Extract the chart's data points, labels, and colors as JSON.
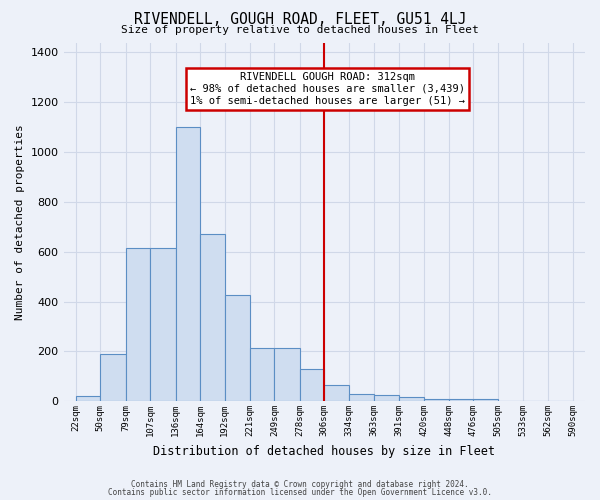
{
  "title": "RIVENDELL, GOUGH ROAD, FLEET, GU51 4LJ",
  "subtitle": "Size of property relative to detached houses in Fleet",
  "xlabel": "Distribution of detached houses by size in Fleet",
  "ylabel": "Number of detached properties",
  "bar_color": "#cfddf0",
  "bar_edge_color": "#5b8ec4",
  "bg_color": "#edf1f9",
  "grid_color": "#d0d8e8",
  "red_line_x": 306,
  "annotation_text": "RIVENDELL GOUGH ROAD: 312sqm\n← 98% of detached houses are smaller (3,439)\n1% of semi-detached houses are larger (51) →",
  "bin_left_edges": [
    22,
    50,
    79,
    107,
    136,
    164,
    192,
    221,
    249,
    278,
    306,
    334,
    363,
    391,
    420,
    448,
    476,
    505,
    533,
    562
  ],
  "bin_widths": [
    28,
    29,
    28,
    29,
    28,
    28,
    29,
    28,
    29,
    28,
    28,
    29,
    28,
    29,
    28,
    28,
    29,
    28,
    29,
    28
  ],
  "bar_heights": [
    20,
    190,
    615,
    615,
    1100,
    670,
    425,
    215,
    215,
    130,
    65,
    30,
    25,
    15,
    10,
    10,
    10,
    0,
    0,
    0
  ],
  "tick_labels": [
    "22sqm",
    "50sqm",
    "79sqm",
    "107sqm",
    "136sqm",
    "164sqm",
    "192sqm",
    "221sqm",
    "249sqm",
    "278sqm",
    "306sqm",
    "334sqm",
    "363sqm",
    "391sqm",
    "420sqm",
    "448sqm",
    "476sqm",
    "505sqm",
    "533sqm",
    "562sqm",
    "590sqm"
  ],
  "ylim": [
    0,
    1440
  ],
  "xlim_left": 8,
  "xlim_right": 605,
  "footer1": "Contains HM Land Registry data © Crown copyright and database right 2024.",
  "footer2": "Contains public sector information licensed under the Open Government Licence v3.0.",
  "annotation_box_color": "#ffffff",
  "annotation_box_edge": "#cc0000",
  "red_line_color": "#cc0000",
  "fig_bg": "#edf1f9"
}
